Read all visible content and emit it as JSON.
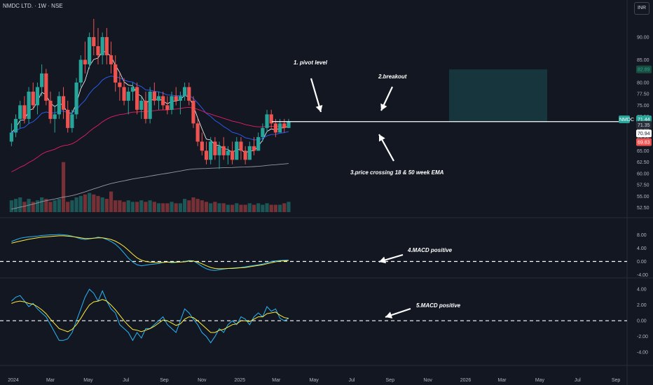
{
  "header": {
    "symbol": "NMDC LTD. · 1W · NSE",
    "currency": "INR"
  },
  "colors": {
    "up": "#26a69a",
    "down": "#ef5350",
    "ema18": "#2962ff",
    "ema50": "#e91e63",
    "ema200": "#9598a1",
    "short_ema": "#ffffff",
    "macd": "#29b6f6",
    "signal": "#ffeb3b",
    "bg": "#131722"
  },
  "annotations": {
    "pivot": "1. pivot level",
    "breakout": "2.breakout",
    "ema_cross": "3.price crossing 18 & 50 week EMA",
    "macd1": "4.MACD positive",
    "macd2": "5.MACD positive"
  },
  "price_tags": {
    "symbol": "NMDC",
    "last": "71.44",
    "p1": "71.35",
    "p2": "70.94",
    "p3": "69.83",
    "target": "82.89"
  },
  "chart_data": [
    {
      "type": "candlestick",
      "panel": "price",
      "title": "NMDC LTD. · 1W · NSE",
      "y_ticks": [
        52.5,
        55,
        57.5,
        60,
        62.5,
        65,
        67.5,
        70,
        72.5,
        75,
        77.5,
        80,
        85,
        90
      ],
      "x_ticks": [
        "2024",
        "Mar",
        "May",
        "Jul",
        "Sep",
        "Nov",
        "2025",
        "Mar",
        "May",
        "Jul",
        "Sep",
        "Nov",
        "2026",
        "Mar",
        "May",
        "Jul",
        "Sep"
      ],
      "x_start": "2023-12-15",
      "x_end": "2026-09-10",
      "weekly_ohlc": [
        [
          67,
          71,
          66,
          69
        ],
        [
          69,
          73,
          68,
          72
        ],
        [
          72,
          76,
          70,
          75
        ],
        [
          75,
          77,
          71,
          72
        ],
        [
          72,
          79,
          71,
          78
        ],
        [
          78,
          80,
          74,
          75
        ],
        [
          75,
          80,
          73,
          79
        ],
        [
          79,
          84,
          77,
          82
        ],
        [
          82,
          83,
          75,
          76
        ],
        [
          76,
          78,
          71,
          72
        ],
        [
          72,
          75,
          69,
          73
        ],
        [
          73,
          78,
          72,
          77
        ],
        [
          77,
          79,
          72,
          74
        ],
        [
          74,
          76,
          69,
          70
        ],
        [
          70,
          74,
          69,
          73
        ],
        [
          73,
          81,
          72,
          80
        ],
        [
          80,
          86,
          79,
          85
        ],
        [
          85,
          89,
          82,
          84
        ],
        [
          84,
          91,
          83,
          90
        ],
        [
          90,
          94,
          86,
          88
        ],
        [
          88,
          92,
          84,
          86
        ],
        [
          86,
          91,
          84,
          90
        ],
        [
          90,
          92,
          84,
          86
        ],
        [
          86,
          89,
          82,
          84
        ],
        [
          84,
          86,
          78,
          80
        ],
        [
          80,
          82,
          76,
          79
        ],
        [
          79,
          81,
          75,
          76
        ],
        [
          76,
          79,
          73,
          78
        ],
        [
          78,
          80,
          76,
          79
        ],
        [
          79,
          80,
          73,
          74
        ],
        [
          74,
          77,
          72,
          76
        ],
        [
          76,
          78,
          71,
          72
        ],
        [
          72,
          79,
          71,
          78
        ],
        [
          78,
          80,
          75,
          76
        ],
        [
          76,
          78,
          74,
          77
        ],
        [
          77,
          78,
          74,
          75
        ],
        [
          75,
          77,
          73,
          74
        ],
        [
          74,
          78,
          73,
          77
        ],
        [
          77,
          79,
          75,
          76
        ],
        [
          76,
          78,
          73,
          77
        ],
        [
          77,
          80,
          76,
          79
        ],
        [
          79,
          80,
          75,
          76
        ],
        [
          76,
          77,
          70,
          71
        ],
        [
          71,
          72,
          66,
          67
        ],
        [
          67,
          69,
          64,
          65
        ],
        [
          65,
          67,
          62,
          63
        ],
        [
          63,
          68,
          62,
          67
        ],
        [
          67,
          68,
          63,
          64
        ],
        [
          64,
          67,
          61,
          66
        ],
        [
          66,
          68,
          63,
          64
        ],
        [
          64,
          66,
          62,
          65
        ],
        [
          65,
          67,
          62,
          63
        ],
        [
          63,
          68,
          63,
          67
        ],
        [
          67,
          68,
          63,
          65
        ],
        [
          65,
          66,
          62,
          63
        ],
        [
          63,
          67,
          63,
          66
        ],
        [
          66,
          68,
          64,
          65
        ],
        [
          65,
          69,
          65,
          68
        ],
        [
          68,
          71,
          67,
          70
        ],
        [
          70,
          74,
          69,
          73
        ],
        [
          73,
          74,
          70,
          71
        ],
        [
          71,
          72,
          68,
          69
        ],
        [
          69,
          72,
          69,
          71
        ],
        [
          71,
          72,
          69,
          70
        ],
        [
          70,
          72,
          70,
          71.4
        ]
      ],
      "volume": [
        8,
        9,
        10,
        7,
        9,
        7,
        8,
        10,
        9,
        7,
        8,
        9,
        8,
        7,
        8,
        10,
        11,
        12,
        13,
        12,
        11,
        10,
        9,
        9,
        8,
        8,
        7,
        8,
        7,
        7,
        8,
        7,
        8,
        7,
        6,
        6,
        6,
        7,
        6,
        6,
        9,
        8,
        10,
        9,
        8,
        7,
        6,
        7,
        6,
        6,
        5,
        5,
        6,
        5,
        5,
        6,
        5,
        6,
        5,
        6,
        5,
        5,
        5,
        6,
        7
      ],
      "big_volume_bars": {
        "12": 34,
        "23": 14
      },
      "ema_periods": [
        5,
        18,
        50,
        200
      ],
      "resistance": 71.4,
      "target_zone": {
        "from": 71.4,
        "to": 82.89
      },
      "stop_zone": {
        "from": 69.83,
        "to": 71.4
      }
    },
    {
      "type": "line",
      "panel": "macd_weekly",
      "y_ticks": [
        8,
        4,
        0,
        -4
      ],
      "ylim": [
        -6,
        10
      ],
      "series": [
        {
          "values": [
            6,
            6.5,
            7,
            7.2,
            7.4,
            7.5,
            7.6,
            7.8,
            7.9,
            8,
            8,
            8.1,
            8,
            7.9,
            7.6,
            7.2,
            6.8,
            6.6,
            6.8,
            7,
            7.3,
            7.1,
            6.6,
            6,
            5.2,
            4,
            2.5,
            1,
            -0.2,
            -1,
            -1.3,
            -1.1,
            -0.9,
            -0.8,
            -0.6,
            -0.3,
            -0.2,
            -0.4,
            -0.3,
            -0.2,
            0,
            0.3,
            0.2,
            -0.6,
            -1.5,
            -2.2,
            -2.6,
            -2.7,
            -2.5,
            -2.3,
            -2.1,
            -2,
            -1.9,
            -1.8,
            -1.6,
            -1.4,
            -1.2,
            -1,
            -0.8,
            -0.4,
            0,
            0.2,
            0.3,
            0.35,
            0.4
          ]
        },
        {
          "values": [
            5.5,
            5.8,
            6.1,
            6.4,
            6.7,
            6.9,
            7.1,
            7.3,
            7.4,
            7.5,
            7.6,
            7.7,
            7.7,
            7.6,
            7.5,
            7.3,
            7.1,
            6.9,
            6.9,
            7,
            7.1,
            7.1,
            6.9,
            6.6,
            6.1,
            5.4,
            4.5,
            3.4,
            2.2,
            1.1,
            0.4,
            0,
            -0.2,
            -0.3,
            -0.3,
            -0.3,
            -0.2,
            -0.2,
            -0.2,
            -0.2,
            -0.1,
            0.1,
            0.1,
            -0.2,
            -0.7,
            -1.3,
            -1.8,
            -2.1,
            -2.2,
            -2.2,
            -2.1,
            -2.1,
            -2,
            -1.9,
            -1.8,
            -1.6,
            -1.4,
            -1.2,
            -1,
            -0.7,
            -0.4,
            -0.1,
            0.1,
            0.2,
            0.3
          ]
        }
      ]
    },
    {
      "type": "line",
      "panel": "macd_daily",
      "y_ticks": [
        4,
        2,
        0,
        -2,
        -4
      ],
      "ylim": [
        -5.5,
        5
      ],
      "series": [
        {
          "values": [
            2.5,
            3,
            3.2,
            2.5,
            1.8,
            2.2,
            1.5,
            1,
            0.5,
            -0.5,
            -1.5,
            -2.5,
            -2.5,
            -2.3,
            -1.5,
            0,
            1.5,
            3,
            4,
            3.5,
            2.5,
            3.8,
            2.5,
            1.5,
            1,
            -0.5,
            -1,
            -1.5,
            -2.5,
            -1.5,
            -2.2,
            -1,
            -1,
            -0.5,
            0,
            0.5,
            -0.5,
            -1,
            -1.5,
            0,
            1.5,
            1,
            0.2,
            -0.5,
            -1.5,
            -2,
            -2.8,
            -2,
            -1,
            -1.5,
            -0.5,
            0,
            -0.5,
            0.5,
            0.2,
            -0.5,
            0.5,
            1,
            0.5,
            1.8,
            1.2,
            1.5,
            0.3,
            0,
            0.3
          ]
        },
        {
          "values": [
            2.2,
            2.4,
            2.5,
            2.4,
            2.2,
            2.1,
            1.8,
            1.4,
            0.9,
            0.2,
            -0.4,
            -1,
            -1.2,
            -1.4,
            -1.1,
            -0.5,
            0.3,
            1.2,
            2,
            2.4,
            2.5,
            2.7,
            2.5,
            2,
            1.4,
            0.7,
            0,
            -0.6,
            -1.1,
            -1.2,
            -1.4,
            -1.2,
            -1,
            -0.7,
            -0.3,
            0.1,
            0,
            -0.3,
            -0.6,
            -0.4,
            0.2,
            0.5,
            0.4,
            0,
            -0.5,
            -1,
            -1.5,
            -1.5,
            -1.2,
            -1.1,
            -0.8,
            -0.5,
            -0.4,
            0,
            0,
            -0.1,
            0.2,
            0.5,
            0.5,
            0.9,
            1,
            1.1,
            0.7,
            0.4,
            0.3
          ]
        }
      ]
    }
  ]
}
